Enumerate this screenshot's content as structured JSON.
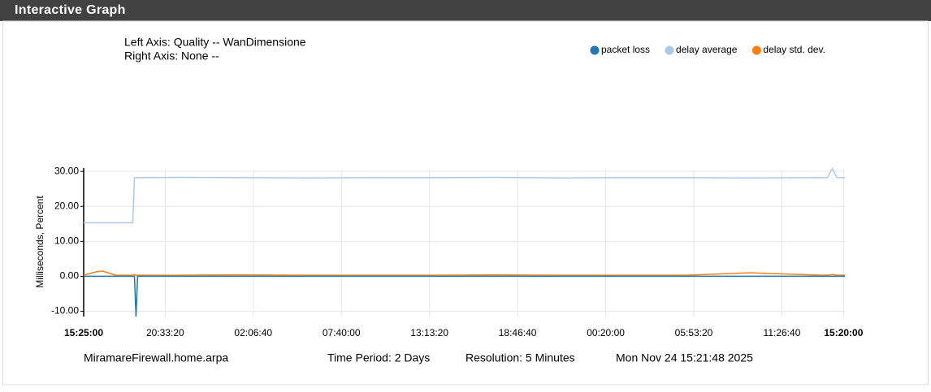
{
  "header": {
    "title": "Interactive Graph"
  },
  "info": {
    "left_axis": "Left Axis: Quality -- WanDimensione",
    "right_axis": "Right Axis: None --"
  },
  "footer": {
    "host": "MiramareFirewall.home.arpa",
    "period": "Time Period: 2 Days",
    "resolution": "Resolution: 5 Minutes",
    "timestamp": "Mon Nov 24 15:21:48 2025"
  },
  "chart_data": {
    "type": "line",
    "y_label": "Milliseconds, Percent",
    "x": [
      0,
      0.8,
      1.2,
      2,
      3.1,
      3.2,
      3.3,
      3.4,
      6,
      10,
      14,
      18,
      22,
      26,
      30,
      34,
      38,
      42,
      46.5,
      46.9,
      47.2,
      47.5,
      48
    ],
    "series": [
      {
        "name": "packet loss",
        "color": "#1f77b4",
        "values": [
          0,
          0,
          0,
          0,
          0,
          0,
          -11.5,
          0,
          0,
          0,
          0,
          0,
          0,
          0,
          0,
          0,
          0,
          0,
          0,
          0,
          0,
          0,
          0
        ]
      },
      {
        "name": "delay average",
        "color": "#aec7e8",
        "values": [
          15.3,
          15.3,
          15.3,
          15.3,
          15.3,
          28.2,
          28.2,
          28.2,
          28.3,
          28.2,
          28.1,
          28.2,
          28.2,
          28.3,
          28.1,
          28.2,
          28.2,
          28.1,
          28.2,
          28.2,
          30.8,
          28.2,
          28.2
        ]
      },
      {
        "name": "delay std. dev.",
        "color": "#ff7f0e",
        "values": [
          0.3,
          1.3,
          1.5,
          0.3,
          0.3,
          0.5,
          0.3,
          0.3,
          0.3,
          0.4,
          0.3,
          0.3,
          0.3,
          0.4,
          0.3,
          0.3,
          0.3,
          1.0,
          0.3,
          0.3,
          0.5,
          0.3,
          0.3
        ]
      }
    ],
    "xlim": [
      0,
      48
    ],
    "xticks": [
      {
        "value": 0,
        "label": "15:25:00"
      },
      {
        "value": 5.139,
        "label": "20:33:20"
      },
      {
        "value": 10.694,
        "label": "02:06:40"
      },
      {
        "value": 16.25,
        "label": "07:40:00"
      },
      {
        "value": 21.806,
        "label": "13:13:20"
      },
      {
        "value": 27.361,
        "label": "18:46:40"
      },
      {
        "value": 32.917,
        "label": "00:20:00"
      },
      {
        "value": 38.472,
        "label": "05:53:20"
      },
      {
        "value": 44.028,
        "label": "11:26:40"
      },
      {
        "value": 47.917,
        "label": "15:20:00"
      }
    ],
    "ylim": [
      -11.5,
      30.5
    ],
    "yticks": [
      {
        "value": 30,
        "label": "30.00"
      },
      {
        "value": 20,
        "label": "20.00"
      },
      {
        "value": 10,
        "label": "10.00"
      },
      {
        "value": 0,
        "label": "0.00"
      },
      {
        "value": -10,
        "label": "-10.00"
      }
    ],
    "grid": true
  }
}
